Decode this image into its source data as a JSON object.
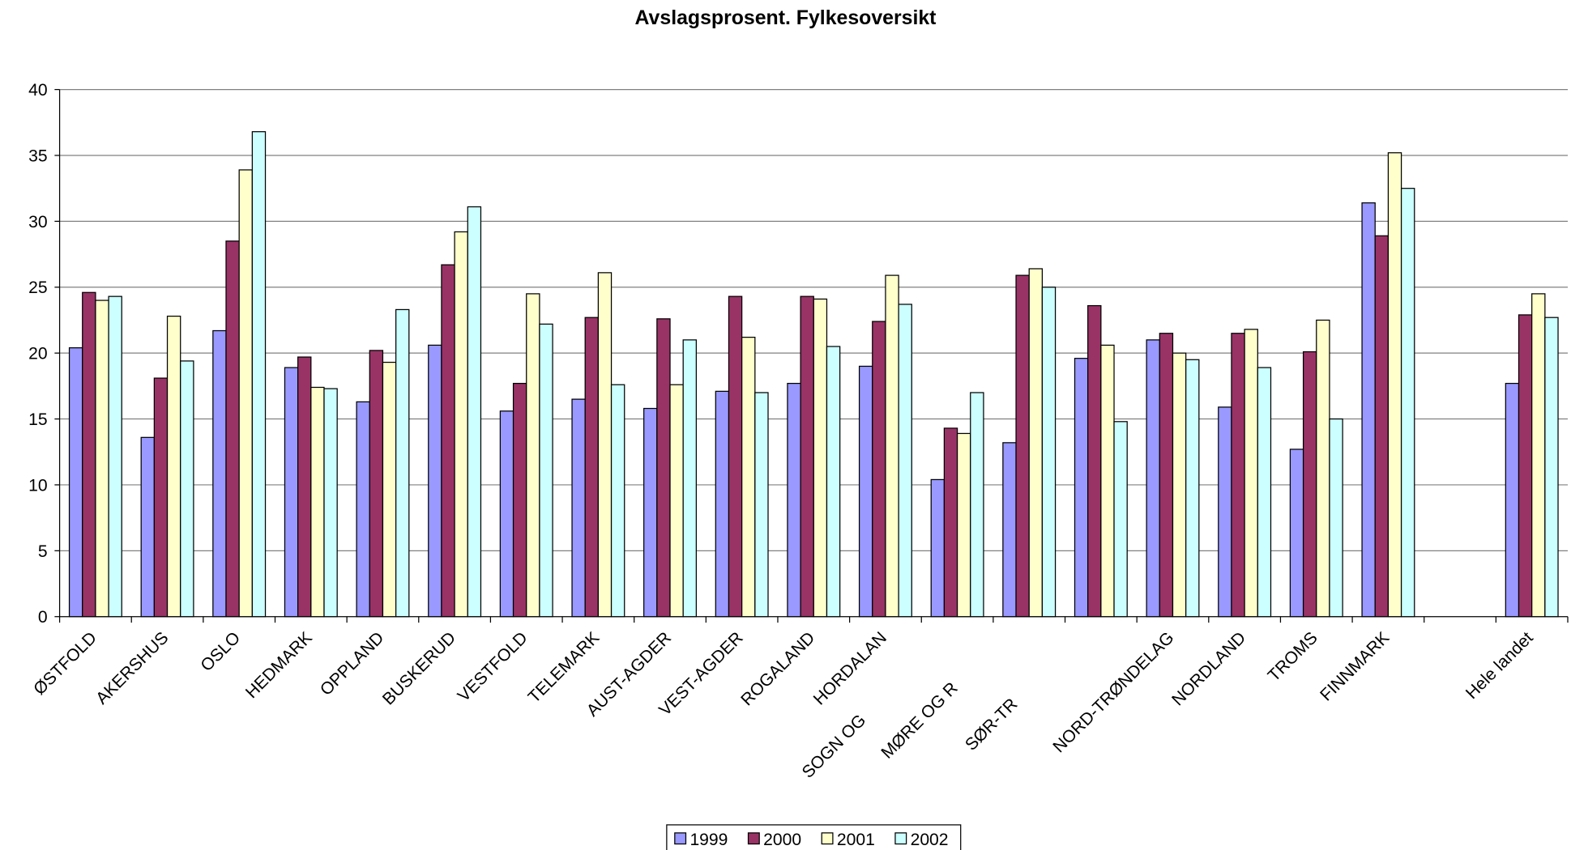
{
  "chart_data": {
    "type": "bar",
    "title": "Avslagsprosent. Fylkesoversikt",
    "categories": [
      "ØSTFOLD",
      "AKERSHUS",
      "OSLO",
      "HEDMARK",
      "OPPLAND",
      "BUSKERUD",
      "VESTFOLD",
      "TELEMARK",
      "AUST-AGDER",
      "VEST-AGDER",
      "ROGALAND",
      "HORDALAN",
      "SOGN OG",
      "MØRE OG R",
      "SØR-TR",
      "NORD-TRØNDELAG",
      "NORDLAND",
      "TROMS",
      "FINNMARK",
      null,
      "Hele landet"
    ],
    "series": [
      {
        "name": "1999",
        "color": "#9999ff",
        "values": [
          20.4,
          13.6,
          21.7,
          18.9,
          16.3,
          20.6,
          15.6,
          16.5,
          15.8,
          17.1,
          17.7,
          19.0,
          10.4,
          13.2,
          19.6,
          21.0,
          15.9,
          12.7,
          31.4,
          null,
          17.7
        ]
      },
      {
        "name": "2000",
        "color": "#993366",
        "values": [
          24.6,
          18.1,
          28.5,
          19.7,
          20.2,
          26.7,
          17.7,
          22.7,
          22.6,
          24.3,
          24.3,
          22.4,
          14.3,
          25.9,
          23.6,
          21.5,
          21.5,
          20.1,
          28.9,
          null,
          22.9
        ]
      },
      {
        "name": "2001",
        "color": "#ffffcc",
        "values": [
          24.0,
          22.8,
          33.9,
          17.4,
          19.3,
          29.2,
          24.5,
          26.1,
          17.6,
          21.2,
          24.1,
          25.9,
          13.9,
          26.4,
          20.6,
          20.0,
          21.8,
          22.5,
          35.2,
          null,
          24.5
        ]
      },
      {
        "name": "2002",
        "color": "#ccffff",
        "values": [
          24.3,
          19.4,
          36.8,
          17.3,
          23.3,
          31.1,
          22.2,
          17.6,
          21.0,
          17.0,
          20.5,
          23.7,
          17.0,
          25.0,
          14.8,
          19.5,
          18.9,
          15.0,
          32.5,
          null,
          22.7
        ]
      }
    ],
    "ylim": [
      0,
      40
    ],
    "yticks": [
      0,
      5,
      10,
      15,
      20,
      25,
      30,
      35,
      40
    ],
    "grid": true,
    "legend": "bottom"
  }
}
